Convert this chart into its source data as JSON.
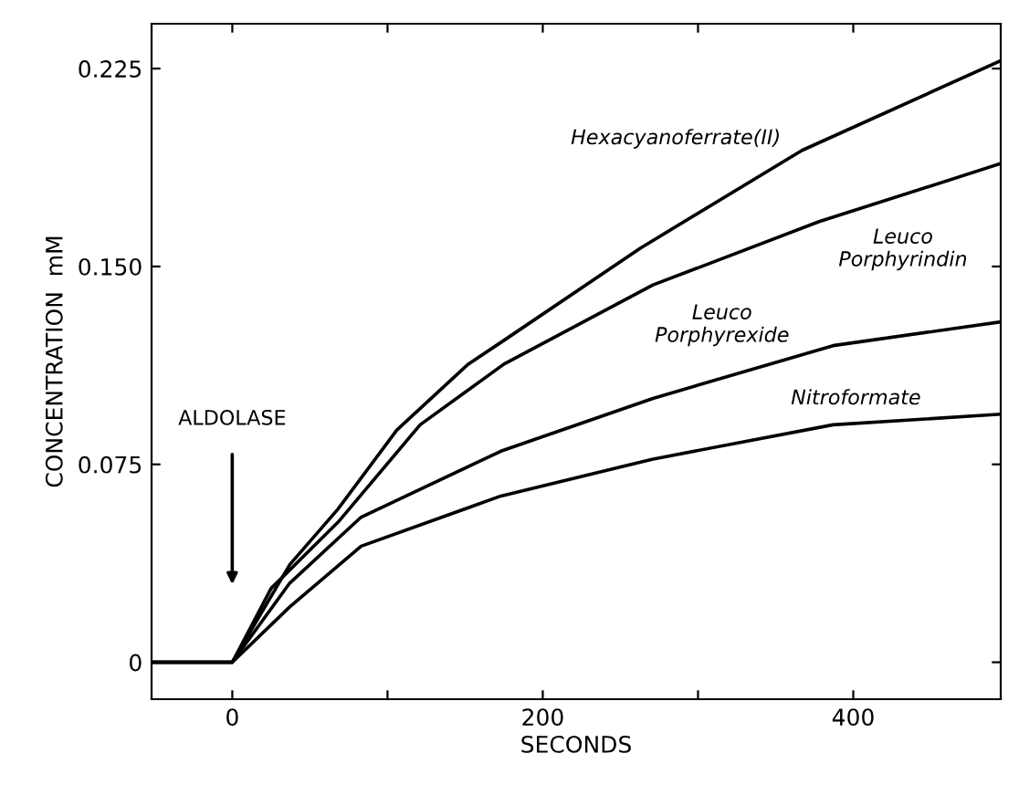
{
  "chart_data": {
    "type": "line",
    "xlabel": "SECONDS",
    "ylabel": "CONCENTRATION  mM",
    "xlim": [
      -52,
      495
    ],
    "ylim": [
      -0.014,
      0.242
    ],
    "xticks": [
      0,
      {
        "value": 100,
        "label": null
      },
      200,
      {
        "value": 300,
        "label": null
      },
      400
    ],
    "yticks": [
      0,
      0.075,
      {
        "value": 0.15,
        "label": "0.150"
      },
      0.225
    ],
    "grid": false,
    "legend": false,
    "marker": "none",
    "line_style": "solid",
    "annotations": [
      "ALDOLASE"
    ],
    "series": [
      {
        "name": "Hexacyanoferrate(II)",
        "color": "#000000",
        "x": [
          -52,
          0,
          14,
          37,
          68,
          106,
          152,
          175,
          263,
          367,
          495
        ],
        "values": [
          0,
          0,
          0.014,
          0.037,
          0.058,
          0.088,
          0.113,
          0.122,
          0.157,
          0.194,
          0.228
        ]
      },
      {
        "name": "Leuco\nPorphyrindin",
        "color": "#000000",
        "x": [
          -52,
          0,
          25,
          68,
          121,
          175,
          271,
          378,
          495
        ],
        "values": [
          0,
          0,
          0.028,
          0.053,
          0.09,
          0.113,
          0.143,
          0.167,
          0.189
        ]
      },
      {
        "name": "Leuco\nPorphyrexide",
        "color": "#000000",
        "x": [
          -52,
          0,
          37,
          83,
          173,
          271,
          387,
          495
        ],
        "values": [
          0,
          0,
          0.03,
          0.055,
          0.08,
          0.1,
          0.12,
          0.129
        ]
      },
      {
        "name": "Nitroformate",
        "color": "#000000",
        "x": [
          -52,
          0,
          37,
          83,
          173,
          271,
          387,
          495
        ],
        "values": [
          0,
          0,
          0.021,
          0.044,
          0.063,
          0.077,
          0.09,
          0.094
        ]
      }
    ]
  }
}
